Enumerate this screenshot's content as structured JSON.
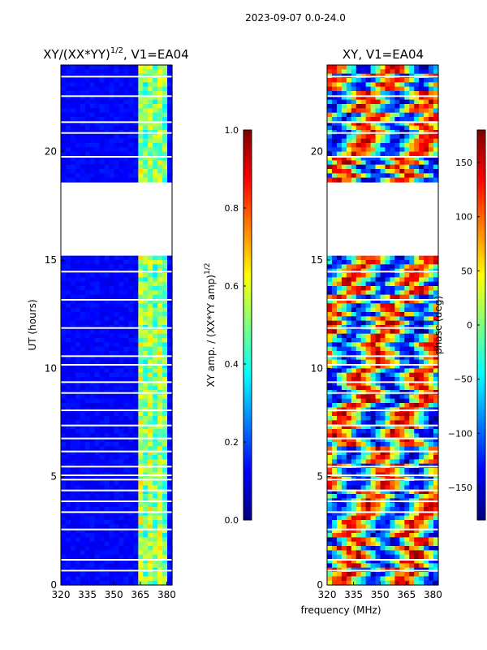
{
  "suptitle": "2023-09-07 0.0-24.0",
  "xlabel": "frequency (MHz)",
  "chart_data": [
    {
      "type": "heatmap",
      "title_main": "XY/(XX*YY)",
      "title_exp": "1/2",
      "title_suffix": ", V1=EA04",
      "ylabel": "UT (hours)",
      "xlim": [
        320,
        383
      ],
      "ylim": [
        0,
        24
      ],
      "xticks": [
        320,
        335,
        350,
        365,
        380
      ],
      "yticks": [
        0,
        5,
        10,
        15,
        20
      ],
      "colorbar": {
        "label_main": "XY amp. / (XX*YY amp)",
        "label_exp": "1/2",
        "range": [
          0,
          1
        ],
        "ticks": [
          "0.0",
          "0.2",
          "0.4",
          "0.6",
          "0.8",
          "1.0"
        ],
        "tick_values": [
          0,
          0.2,
          0.4,
          0.6,
          0.8,
          1.0
        ],
        "colormap": "jet"
      },
      "gaps_ut": [
        [
          15.1,
          18.6
        ]
      ]
    },
    {
      "type": "heatmap",
      "title_main": "XY, V1=EA04",
      "ylabel": "",
      "xlim": [
        320,
        383
      ],
      "ylim": [
        0,
        24
      ],
      "xticks": [
        320,
        335,
        350,
        365,
        380
      ],
      "yticks": [
        0,
        5,
        10,
        15,
        20
      ],
      "colorbar": {
        "label_main": "phase (deg)",
        "range": [
          -180,
          180
        ],
        "ticks": [
          "−150",
          "−100",
          "−50",
          "0",
          "50",
          "100",
          "150"
        ],
        "tick_values": [
          -150,
          -100,
          -50,
          0,
          50,
          100,
          150
        ],
        "colormap": "jet"
      },
      "gaps_ut": [
        [
          15.1,
          18.6
        ]
      ]
    }
  ]
}
